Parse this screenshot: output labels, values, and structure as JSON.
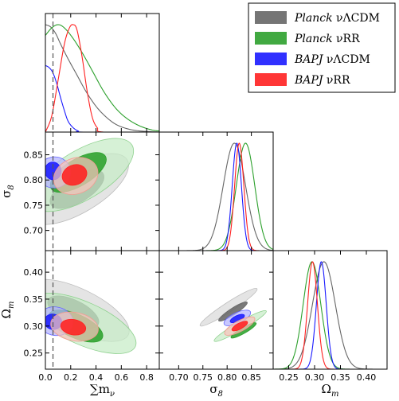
{
  "chart_data": {
    "type": "triangle-corner-plot",
    "parameters": [
      {
        "key": "mnu",
        "label_main": "∑m",
        "label_sub": "ν",
        "range": [
          0.0,
          0.9
        ],
        "ticks": [
          0.0,
          0.2,
          0.4,
          0.6,
          0.8
        ],
        "tick_labels": [
          "0.0",
          "0.2",
          "0.4",
          "0.6",
          "0.8"
        ]
      },
      {
        "key": "sigma8",
        "label_main": "σ",
        "label_sub": "8",
        "range": [
          0.66,
          0.895
        ],
        "ticks": [
          0.7,
          0.75,
          0.8,
          0.85
        ],
        "tick_labels": [
          "0.70",
          "0.75",
          "0.80",
          "0.85"
        ]
      },
      {
        "key": "omegam",
        "label_main": "Ω",
        "label_sub": "m",
        "range": [
          0.22,
          0.44
        ],
        "ticks": [
          0.25,
          0.3,
          0.35,
          0.4
        ],
        "tick_labels": [
          "0.25",
          "0.30",
          "0.35",
          "0.40"
        ]
      }
    ],
    "reference_line": {
      "param": "mnu",
      "value": 0.06,
      "style": "dashed",
      "color": "#555555"
    },
    "legend": {
      "placement": "top-right",
      "entries": [
        {
          "italic": "Planck",
          "rest": " νΛCDM",
          "series": 0
        },
        {
          "italic": "Planck",
          "rest": " νRR",
          "series": 1
        },
        {
          "italic": "BAPJ",
          "rest": " νΛCDM",
          "series": 2
        },
        {
          "italic": "BAPJ",
          "rest": " νRR",
          "series": 3
        }
      ]
    },
    "series": [
      {
        "name": "Planck νΛCDM",
        "color": "#666666",
        "light": "#d9d9d9",
        "mid": "#bdbdbd",
        "mnu_pdf": [
          [
            0.0,
            1.0
          ],
          [
            0.04,
            0.98
          ],
          [
            0.08,
            0.92
          ],
          [
            0.12,
            0.82
          ],
          [
            0.18,
            0.68
          ],
          [
            0.25,
            0.53
          ],
          [
            0.32,
            0.38
          ],
          [
            0.4,
            0.24
          ],
          [
            0.48,
            0.14
          ],
          [
            0.56,
            0.07
          ],
          [
            0.65,
            0.03
          ],
          [
            0.75,
            0.01
          ],
          [
            0.9,
            0.0
          ]
        ],
        "sigma8_pdf": {
          "mu": 0.815,
          "sd": 0.023
        },
        "omegam_pdf": {
          "mu": 0.318,
          "sd": 0.022
        },
        "contours": {
          "mnu_sigma8": [
            {
              "cx": 0.26,
              "cy": 0.782,
              "rx": 0.45,
              "ry": 0.021,
              "angle": -31,
              "level": 0.95
            },
            {
              "cx": 0.25,
              "cy": 0.782,
              "rx": 0.24,
              "ry": 0.012,
              "angle": -31,
              "level": 0.68
            }
          ],
          "mnu_omegam": [
            {
              "cx": 0.26,
              "cy": 0.329,
              "rx": 0.44,
              "ry": 0.018,
              "angle": 26,
              "level": 0.95
            },
            {
              "cx": 0.22,
              "cy": 0.326,
              "rx": 0.22,
              "ry": 0.01,
              "angle": 26,
              "level": 0.68
            }
          ],
          "sigma8_omegam": [
            {
              "cx": 0.803,
              "cy": 0.335,
              "rx": 0.07,
              "ry": 0.004,
              "angle": -33,
              "level": 0.95
            },
            {
              "cx": 0.812,
              "cy": 0.327,
              "rx": 0.035,
              "ry": 0.0028,
              "angle": -33,
              "level": 0.68
            }
          ]
        }
      },
      {
        "name": "Planck νRR",
        "color": "#2ca02c",
        "light": "#c6ecc6",
        "mid": "#8fd18f",
        "mnu_pdf": [
          [
            0.0,
            0.9
          ],
          [
            0.05,
            0.97
          ],
          [
            0.1,
            1.0
          ],
          [
            0.15,
            0.97
          ],
          [
            0.22,
            0.87
          ],
          [
            0.3,
            0.72
          ],
          [
            0.38,
            0.55
          ],
          [
            0.46,
            0.38
          ],
          [
            0.55,
            0.23
          ],
          [
            0.64,
            0.13
          ],
          [
            0.74,
            0.06
          ],
          [
            0.84,
            0.02
          ],
          [
            0.9,
            0.01
          ]
        ],
        "sigma8_pdf": {
          "mu": 0.838,
          "sd": 0.019
        },
        "omegam_pdf": {
          "mu": 0.295,
          "sd": 0.017
        },
        "contours": {
          "mnu_sigma8": [
            {
              "cx": 0.29,
              "cy": 0.81,
              "rx": 0.46,
              "ry": 0.022,
              "angle": -31,
              "level": 0.95
            },
            {
              "cx": 0.26,
              "cy": 0.815,
              "rx": 0.25,
              "ry": 0.012,
              "angle": -31,
              "level": 0.68
            }
          ],
          "mnu_omegam": [
            {
              "cx": 0.3,
              "cy": 0.305,
              "rx": 0.45,
              "ry": 0.018,
              "angle": 24,
              "level": 0.95
            },
            {
              "cx": 0.24,
              "cy": 0.3,
              "rx": 0.23,
              "ry": 0.01,
              "angle": 24,
              "level": 0.68
            }
          ],
          "sigma8_omegam": [
            {
              "cx": 0.827,
              "cy": 0.3,
              "rx": 0.062,
              "ry": 0.0035,
              "angle": -30,
              "level": 0.95
            },
            {
              "cx": 0.834,
              "cy": 0.292,
              "rx": 0.03,
              "ry": 0.0025,
              "angle": -30,
              "level": 0.68
            }
          ]
        }
      },
      {
        "name": "BAPJ νΛCDM",
        "color": "#1a1aff",
        "light": "#b3b3ff",
        "mid": "#6666ff",
        "mnu_pdf": [
          [
            0.0,
            0.62
          ],
          [
            0.03,
            0.6
          ],
          [
            0.06,
            0.55
          ],
          [
            0.09,
            0.45
          ],
          [
            0.12,
            0.32
          ],
          [
            0.15,
            0.2
          ],
          [
            0.18,
            0.1
          ],
          [
            0.22,
            0.04
          ],
          [
            0.26,
            0.01
          ],
          [
            0.3,
            0.0
          ],
          [
            0.9,
            0.0
          ]
        ],
        "sigma8_pdf": {
          "mu": 0.82,
          "sd": 0.0095
        },
        "omegam_pdf": {
          "mu": 0.313,
          "sd": 0.0095
        },
        "contours": {
          "mnu_sigma8": [
            {
              "cx": 0.07,
              "cy": 0.815,
              "rx": 0.13,
              "ry": 0.014,
              "angle": -12,
              "level": 0.95
            },
            {
              "cx": 0.06,
              "cy": 0.818,
              "rx": 0.065,
              "ry": 0.008,
              "angle": -12,
              "level": 0.68
            }
          ],
          "mnu_omegam": [
            {
              "cx": 0.08,
              "cy": 0.309,
              "rx": 0.14,
              "ry": 0.012,
              "angle": 10,
              "level": 0.95
            },
            {
              "cx": 0.06,
              "cy": 0.308,
              "rx": 0.07,
              "ry": 0.0065,
              "angle": 10,
              "level": 0.68
            }
          ],
          "sigma8_omegam": [
            {
              "cx": 0.821,
              "cy": 0.315,
              "rx": 0.03,
              "ry": 0.0045,
              "angle": -25,
              "level": 0.95
            },
            {
              "cx": 0.821,
              "cy": 0.314,
              "rx": 0.016,
              "ry": 0.0025,
              "angle": -25,
              "level": 0.68
            }
          ]
        }
      },
      {
        "name": "BAPJ νRR",
        "color": "#ff2020",
        "light": "#f7c5bd",
        "mid": "#f59a90",
        "mnu_pdf": [
          [
            0.0,
            0.0
          ],
          [
            0.05,
            0.15
          ],
          [
            0.1,
            0.48
          ],
          [
            0.15,
            0.82
          ],
          [
            0.19,
            0.97
          ],
          [
            0.22,
            1.0
          ],
          [
            0.25,
            0.95
          ],
          [
            0.29,
            0.7
          ],
          [
            0.33,
            0.38
          ],
          [
            0.37,
            0.14
          ],
          [
            0.41,
            0.04
          ],
          [
            0.46,
            0.0
          ],
          [
            0.9,
            0.0
          ]
        ],
        "sigma8_pdf": {
          "mu": 0.825,
          "sd": 0.0095
        },
        "omegam_pdf": {
          "mu": 0.296,
          "sd": 0.0095
        },
        "contours": {
          "mnu_sigma8": [
            {
              "cx": 0.24,
              "cy": 0.808,
              "rx": 0.18,
              "ry": 0.016,
              "angle": -22,
              "level": 0.95
            },
            {
              "cx": 0.23,
              "cy": 0.81,
              "rx": 0.1,
              "ry": 0.009,
              "angle": -22,
              "level": 0.68
            }
          ],
          "mnu_omegam": [
            {
              "cx": 0.23,
              "cy": 0.299,
              "rx": 0.19,
              "ry": 0.012,
              "angle": 10,
              "level": 0.95
            },
            {
              "cx": 0.22,
              "cy": 0.298,
              "rx": 0.1,
              "ry": 0.0065,
              "angle": 10,
              "level": 0.68
            }
          ],
          "sigma8_omegam": [
            {
              "cx": 0.826,
              "cy": 0.3,
              "rx": 0.035,
              "ry": 0.0045,
              "angle": -28,
              "level": 0.95
            },
            {
              "cx": 0.826,
              "cy": 0.3,
              "rx": 0.018,
              "ry": 0.0025,
              "angle": -28,
              "level": 0.68
            }
          ]
        }
      }
    ]
  }
}
